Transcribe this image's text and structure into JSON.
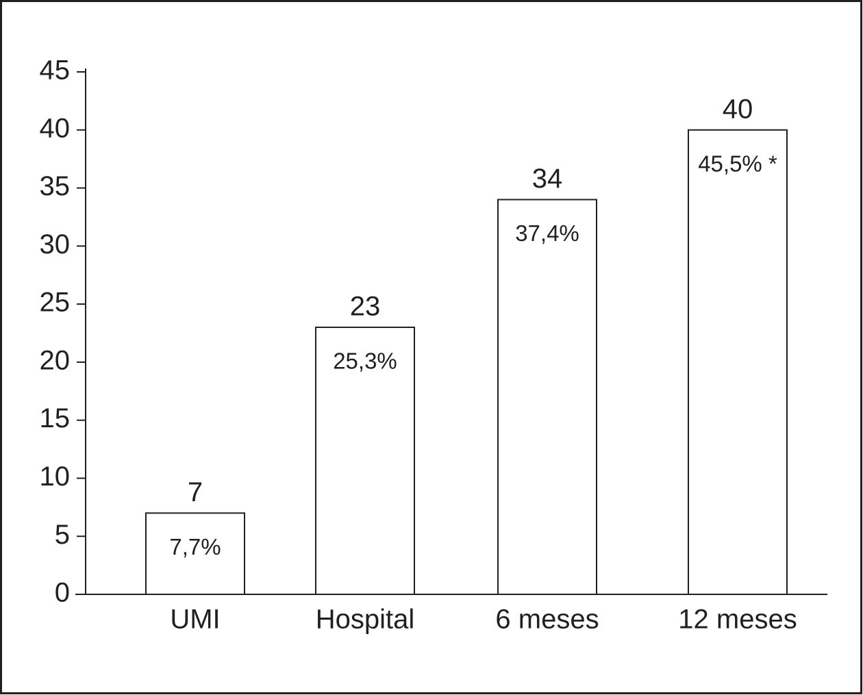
{
  "chart_data": {
    "type": "bar",
    "categories": [
      "UMI",
      "Hospital",
      "6 meses",
      "12 meses"
    ],
    "values": [
      7,
      23,
      34,
      40
    ],
    "annotations": [
      "7,7%",
      "25,3%",
      "37,4%",
      "45,5% *"
    ],
    "color": "#ffffff",
    "ylim": [
      0,
      45
    ],
    "yticks": [
      0,
      5,
      10,
      15,
      20,
      25,
      30,
      35,
      40,
      45
    ],
    "grid": false
  }
}
